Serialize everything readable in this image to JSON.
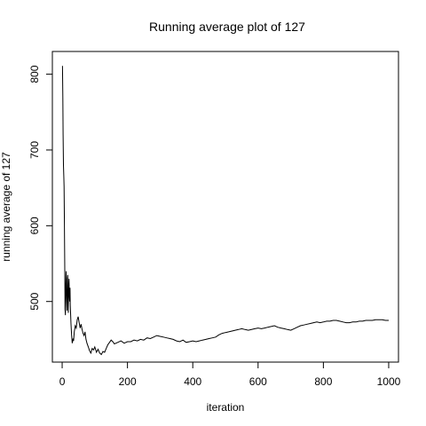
{
  "chart_data": {
    "type": "line",
    "title": "Running average plot of 127",
    "xlabel": "iteration",
    "ylabel": "running average of 127",
    "xlim": [
      -30,
      1030
    ],
    "ylim": [
      420,
      830
    ],
    "xticks": [
      0,
      200,
      400,
      600,
      800,
      1000
    ],
    "yticks": [
      500,
      600,
      700,
      800
    ],
    "grid": false,
    "series": [
      {
        "color": "#000000",
        "points": [
          [
            1,
            811
          ],
          [
            2,
            770
          ],
          [
            3,
            720
          ],
          [
            4,
            680
          ],
          [
            5,
            665
          ],
          [
            6,
            652
          ],
          [
            7,
            600
          ],
          [
            8,
            540
          ],
          [
            9,
            490
          ],
          [
            10,
            482
          ],
          [
            11,
            520
          ],
          [
            12,
            540
          ],
          [
            13,
            515
          ],
          [
            14,
            500
          ],
          [
            15,
            488
          ],
          [
            16,
            530
          ],
          [
            17,
            535
          ],
          [
            18,
            505
          ],
          [
            19,
            485
          ],
          [
            20,
            520
          ],
          [
            21,
            530
          ],
          [
            22,
            510
          ],
          [
            23,
            500
          ],
          [
            24,
            518
          ],
          [
            25,
            495
          ],
          [
            27,
            470
          ],
          [
            29,
            455
          ],
          [
            31,
            445
          ],
          [
            33,
            450
          ],
          [
            35,
            448
          ],
          [
            37,
            460
          ],
          [
            40,
            468
          ],
          [
            43,
            465
          ],
          [
            46,
            476
          ],
          [
            49,
            480
          ],
          [
            52,
            472
          ],
          [
            55,
            465
          ],
          [
            58,
            470
          ],
          [
            61,
            463
          ],
          [
            64,
            458
          ],
          [
            67,
            455
          ],
          [
            70,
            460
          ],
          [
            73,
            450
          ],
          [
            76,
            445
          ],
          [
            80,
            440
          ],
          [
            84,
            435
          ],
          [
            88,
            432
          ],
          [
            92,
            438
          ],
          [
            96,
            436
          ],
          [
            100,
            440
          ],
          [
            105,
            433
          ],
          [
            110,
            437
          ],
          [
            115,
            432
          ],
          [
            120,
            430
          ],
          [
            125,
            434
          ],
          [
            130,
            433
          ],
          [
            135,
            438
          ],
          [
            140,
            443
          ],
          [
            145,
            446
          ],
          [
            150,
            449
          ],
          [
            155,
            447
          ],
          [
            160,
            444
          ],
          [
            170,
            446
          ],
          [
            180,
            448
          ],
          [
            190,
            445
          ],
          [
            200,
            447
          ],
          [
            210,
            447
          ],
          [
            220,
            449
          ],
          [
            230,
            448
          ],
          [
            240,
            450
          ],
          [
            250,
            449
          ],
          [
            260,
            452
          ],
          [
            270,
            451
          ],
          [
            280,
            453
          ],
          [
            290,
            455
          ],
          [
            300,
            454
          ],
          [
            310,
            453
          ],
          [
            320,
            452
          ],
          [
            330,
            451
          ],
          [
            340,
            450
          ],
          [
            350,
            448
          ],
          [
            360,
            447
          ],
          [
            370,
            449
          ],
          [
            380,
            446
          ],
          [
            390,
            447
          ],
          [
            400,
            448
          ],
          [
            410,
            447
          ],
          [
            420,
            448
          ],
          [
            430,
            449
          ],
          [
            440,
            450
          ],
          [
            450,
            451
          ],
          [
            460,
            452
          ],
          [
            470,
            453
          ],
          [
            480,
            456
          ],
          [
            490,
            458
          ],
          [
            500,
            459
          ],
          [
            510,
            460
          ],
          [
            520,
            461
          ],
          [
            530,
            462
          ],
          [
            540,
            463
          ],
          [
            550,
            464
          ],
          [
            560,
            463
          ],
          [
            570,
            462
          ],
          [
            580,
            463
          ],
          [
            590,
            464
          ],
          [
            600,
            465
          ],
          [
            610,
            464
          ],
          [
            620,
            465
          ],
          [
            630,
            466
          ],
          [
            640,
            467
          ],
          [
            650,
            468
          ],
          [
            660,
            466
          ],
          [
            670,
            465
          ],
          [
            680,
            464
          ],
          [
            690,
            463
          ],
          [
            700,
            462
          ],
          [
            710,
            464
          ],
          [
            720,
            466
          ],
          [
            730,
            468
          ],
          [
            740,
            469
          ],
          [
            750,
            470
          ],
          [
            760,
            471
          ],
          [
            770,
            472
          ],
          [
            780,
            473
          ],
          [
            790,
            472
          ],
          [
            800,
            473
          ],
          [
            810,
            474
          ],
          [
            820,
            474
          ],
          [
            830,
            475
          ],
          [
            840,
            475
          ],
          [
            850,
            474
          ],
          [
            860,
            473
          ],
          [
            870,
            472
          ],
          [
            880,
            472
          ],
          [
            890,
            473
          ],
          [
            900,
            473
          ],
          [
            910,
            474
          ],
          [
            920,
            474
          ],
          [
            930,
            475
          ],
          [
            940,
            475
          ],
          [
            950,
            475
          ],
          [
            960,
            476
          ],
          [
            970,
            476
          ],
          [
            980,
            476
          ],
          [
            990,
            475
          ],
          [
            1000,
            475
          ]
        ]
      }
    ]
  }
}
